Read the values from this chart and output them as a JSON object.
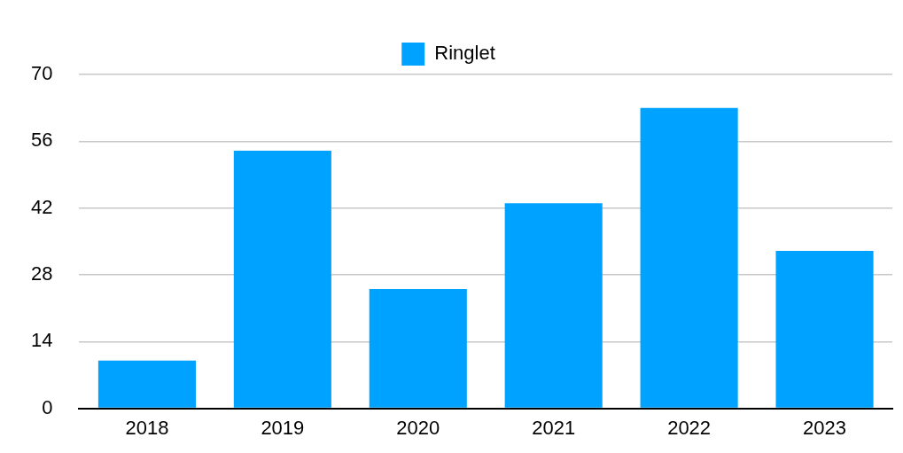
{
  "chart_data": {
    "type": "bar",
    "categories": [
      "2018",
      "2019",
      "2020",
      "2021",
      "2022",
      "2023"
    ],
    "series": [
      {
        "name": "Ringlet",
        "color": "#00a2ff",
        "values": [
          10,
          54,
          25,
          43,
          63,
          33
        ]
      }
    ],
    "ylim": [
      0,
      70
    ],
    "yticks": [
      0,
      14,
      28,
      42,
      56,
      70
    ],
    "grid": "y",
    "legend": "top"
  }
}
